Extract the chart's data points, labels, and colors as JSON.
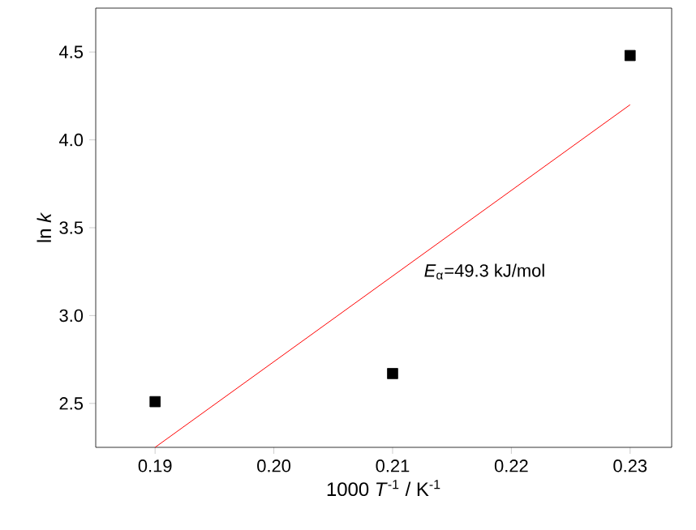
{
  "chart_data": {
    "type": "scatter",
    "xlabel": "1000 *T*$^{-1}$ / K$^{-1}$",
    "ylabel": "ln *k*",
    "xlim": [
      0.185,
      0.2335
    ],
    "xticks": [
      0.19,
      {
        "value": 0.2,
        "label": "0.20"
      },
      0.21,
      0.22,
      0.23
    ],
    "ylim": [
      2.25,
      4.75
    ],
    "yticks": [
      2.5,
      {
        "value": 3,
        "label": "3.0"
      },
      3.5,
      {
        "value": 4,
        "label": "4.0"
      },
      4.5
    ],
    "grid": false,
    "annotations": [
      "*E*$_{α}$=49.3 kJ/mol"
    ],
    "series": [
      {
        "color": "#000000",
        "marker": "square",
        "x": [
          0.19,
          0.21,
          0.23
        ],
        "values": [
          2.51,
          2.67,
          4.48
        ]
      },
      {
        "type": "line",
        "marker": "none",
        "color": "#ff0000",
        "x": [
          0.19,
          0.23
        ],
        "values": [
          2.25,
          4.2
        ]
      }
    ]
  }
}
